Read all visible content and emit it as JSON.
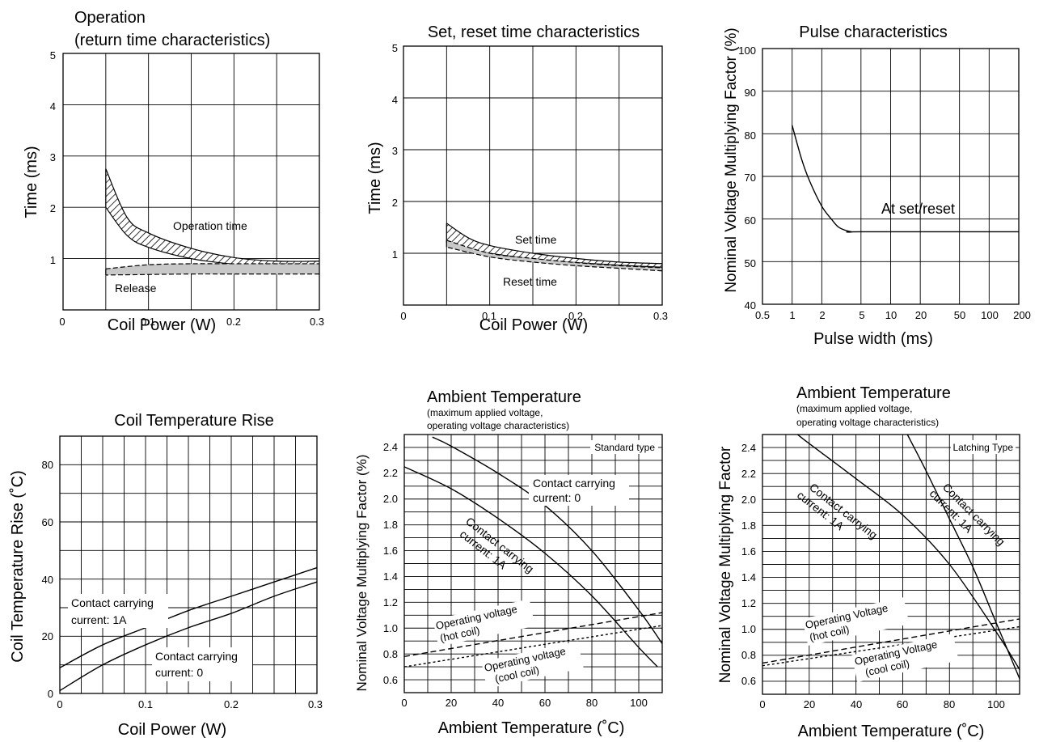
{
  "chart_data": [
    {
      "type": "line",
      "title": "Operation",
      "subtitle": "(return time characteristics)",
      "xlabel": "Coil Power (W)",
      "ylabel": "Time (ms)",
      "xlim": [
        0,
        0.3
      ],
      "ylim": [
        0,
        5
      ],
      "xticks": [
        "0",
        "0.1",
        "0.2",
        "0.3"
      ],
      "yticks": [
        "1",
        "2",
        "3",
        "4",
        "5"
      ],
      "grid": true,
      "bands": [
        {
          "name": "Operation time",
          "x": [
            0.05,
            0.075,
            0.1,
            0.15,
            0.2,
            0.25,
            0.3
          ],
          "upper": [
            2.75,
            1.8,
            1.5,
            1.2,
            1.02,
            0.95,
            0.95
          ],
          "lower": [
            2.0,
            1.45,
            1.22,
            1.0,
            0.89,
            0.82,
            0.78
          ]
        },
        {
          "name": "Release",
          "x": [
            0.05,
            0.1,
            0.15,
            0.2,
            0.25,
            0.3
          ],
          "upper": [
            0.8,
            0.88,
            0.9,
            0.9,
            0.9,
            0.9
          ],
          "lower": [
            0.68,
            0.69,
            0.7,
            0.7,
            0.7,
            0.7
          ]
        }
      ],
      "annotations": [
        "Operation time",
        "Release"
      ]
    },
    {
      "type": "line",
      "title": "Set, reset time characteristics",
      "xlabel": "Coil Power (W)",
      "ylabel": "Time (ms)",
      "xlim": [
        0,
        0.3
      ],
      "ylim": [
        0,
        5
      ],
      "xticks": [
        "0",
        "0.1",
        "0.2",
        "0.3"
      ],
      "yticks": [
        "1",
        "2",
        "3",
        "4",
        "5"
      ],
      "grid": true,
      "bands": [
        {
          "name": "Set time",
          "x": [
            0.05,
            0.075,
            0.1,
            0.15,
            0.2,
            0.25,
            0.3
          ],
          "upper": [
            1.58,
            1.3,
            1.15,
            1.0,
            0.9,
            0.83,
            0.8
          ],
          "lower": [
            1.2,
            1.08,
            1.0,
            0.89,
            0.82,
            0.77,
            0.73
          ]
        },
        {
          "name": "Reset time",
          "x": [
            0.05,
            0.1,
            0.15,
            0.2,
            0.25,
            0.3
          ],
          "upper": [
            1.25,
            1.0,
            0.9,
            0.82,
            0.76,
            0.72
          ],
          "lower": [
            1.12,
            0.93,
            0.83,
            0.76,
            0.71,
            0.66
          ]
        }
      ],
      "annotations": [
        "Set time",
        "Reset time"
      ]
    },
    {
      "type": "line",
      "title": "Pulse characteristics",
      "xlabel": "Pulse width (ms)",
      "ylabel": "Nominal Voltage Multiplying Factor (%)",
      "xscale": "log",
      "xlim": [
        0.5,
        200
      ],
      "ylim": [
        40,
        100
      ],
      "xticks": [
        "0.5",
        "1",
        "2",
        "5",
        "10",
        "20",
        "50",
        "100",
        "200"
      ],
      "yticks": [
        "40",
        "50",
        "60",
        "70",
        "80",
        "90",
        "100"
      ],
      "grid": true,
      "series": [
        {
          "name": "At set/reset",
          "x": [
            1,
            1.25,
            1.5,
            2,
            2.5,
            3,
            4,
            5,
            200
          ],
          "values": [
            82,
            74,
            69,
            63,
            60,
            58,
            57,
            57,
            57
          ]
        }
      ],
      "annotations": [
        "At set/reset"
      ]
    },
    {
      "type": "line",
      "title": "Coil Temperature Rise",
      "xlabel": "Coil Power (W)",
      "ylabel": "Coil Temperature Rise (˚C)",
      "xlim": [
        0,
        0.3
      ],
      "ylim": [
        0,
        90
      ],
      "xticks": [
        "0",
        "0.1",
        "0.2",
        "0.3"
      ],
      "yticks": [
        "0",
        "20",
        "40",
        "60",
        "80"
      ],
      "grid": true,
      "series": [
        {
          "name": "Contact carrying current: 1A",
          "x": [
            0,
            0.05,
            0.1,
            0.15,
            0.2,
            0.25,
            0.3
          ],
          "values": [
            9,
            17,
            23,
            29,
            34,
            39,
            44
          ]
        },
        {
          "name": "Contact carrying current: 0",
          "x": [
            0,
            0.05,
            0.1,
            0.15,
            0.2,
            0.25,
            0.3
          ],
          "values": [
            1,
            10,
            17,
            23,
            28,
            34,
            39
          ]
        }
      ],
      "annotations": [
        "Contact carrying current: 1A",
        "Contact carrying current: 0"
      ]
    },
    {
      "type": "line",
      "title": "Ambient Temperature",
      "subtitle": "(maximum applied voltage,",
      "subtitle2": "operating voltage characteristics)",
      "tag": "Standard type",
      "xlabel": "Ambient Temperature (˚C)",
      "ylabel": "Nominal Voltage Multiplying Factor (%)",
      "xlim": [
        0,
        110
      ],
      "ylim": [
        0.5,
        2.5
      ],
      "xticks": [
        "0",
        "20",
        "40",
        "60",
        "80",
        "100"
      ],
      "yticks": [
        "0.6",
        "0.8",
        "1.0",
        "1.2",
        "1.4",
        "1.6",
        "1.8",
        "2.0",
        "2.2",
        "2.4"
      ],
      "grid": true,
      "series": [
        {
          "name": "Contact carrying current: 0",
          "x": [
            12,
            20,
            40,
            60,
            80,
            100,
            110
          ],
          "values": [
            2.48,
            2.41,
            2.2,
            1.95,
            1.6,
            1.14,
            0.88
          ]
        },
        {
          "name": "Contact carrying current: 1A",
          "x": [
            0,
            20,
            40,
            60,
            80,
            100,
            108
          ],
          "values": [
            2.25,
            2.08,
            1.85,
            1.58,
            1.25,
            0.85,
            0.7
          ]
        },
        {
          "name": "Operating voltage (hot coil)",
          "x": [
            0,
            110
          ],
          "values": [
            0.78,
            1.12
          ],
          "dash": "dashed"
        },
        {
          "name": "Operating voltage (cool coil)",
          "x": [
            0,
            110
          ],
          "values": [
            0.7,
            1.02
          ],
          "dash": "dotted"
        }
      ],
      "annotations": [
        "Contact carrying",
        "current: 0",
        "Contact carrying",
        "current: 1A",
        "Operating voltage",
        "(hot coil)",
        "Operating voltage",
        "(cool coil)"
      ]
    },
    {
      "type": "line",
      "title": "Ambient Temperature",
      "subtitle": "(maximum applied voltage,",
      "subtitle2": "operating voltage characteristics)",
      "tag": "Latching Type",
      "xlabel": "Ambient Temperature (˚C)",
      "ylabel": "Nominal Voltage Multiplying Factor",
      "xlim": [
        0,
        110
      ],
      "ylim": [
        0.5,
        2.5
      ],
      "xticks": [
        "0",
        "20",
        "40",
        "60",
        "80",
        "100"
      ],
      "yticks": [
        "0.6",
        "0.8",
        "1.0",
        "1.2",
        "1.4",
        "1.6",
        "1.8",
        "2.0",
        "2.2",
        "2.4"
      ],
      "grid": true,
      "series": [
        {
          "name": "Contact carrying current: 1A",
          "x": [
            62,
            70,
            80,
            90,
            100,
            110
          ],
          "values": [
            2.5,
            2.22,
            1.85,
            1.48,
            1.05,
            0.62
          ]
        },
        {
          "name": "Contact carrying current: 1A",
          "x": [
            15,
            20,
            40,
            60,
            80,
            100,
            110
          ],
          "values": [
            2.5,
            2.43,
            2.16,
            1.88,
            1.5,
            0.98,
            0.69
          ]
        },
        {
          "name": "Operating Voltage (hot coil)",
          "x": [
            0,
            110
          ],
          "values": [
            0.74,
            1.08
          ],
          "dash": "dashed"
        },
        {
          "name": "Operating Voltage (cool coil)",
          "x": [
            0,
            110
          ],
          "values": [
            0.72,
            1.02
          ],
          "dash": "dotted"
        }
      ],
      "annotations": [
        "Contact carrying",
        "current: 1A",
        "Contact carrying",
        "current: 1A",
        "Operating Voltage",
        "(hot coil)",
        "Operating Voltage",
        "(cool coil)"
      ]
    }
  ]
}
